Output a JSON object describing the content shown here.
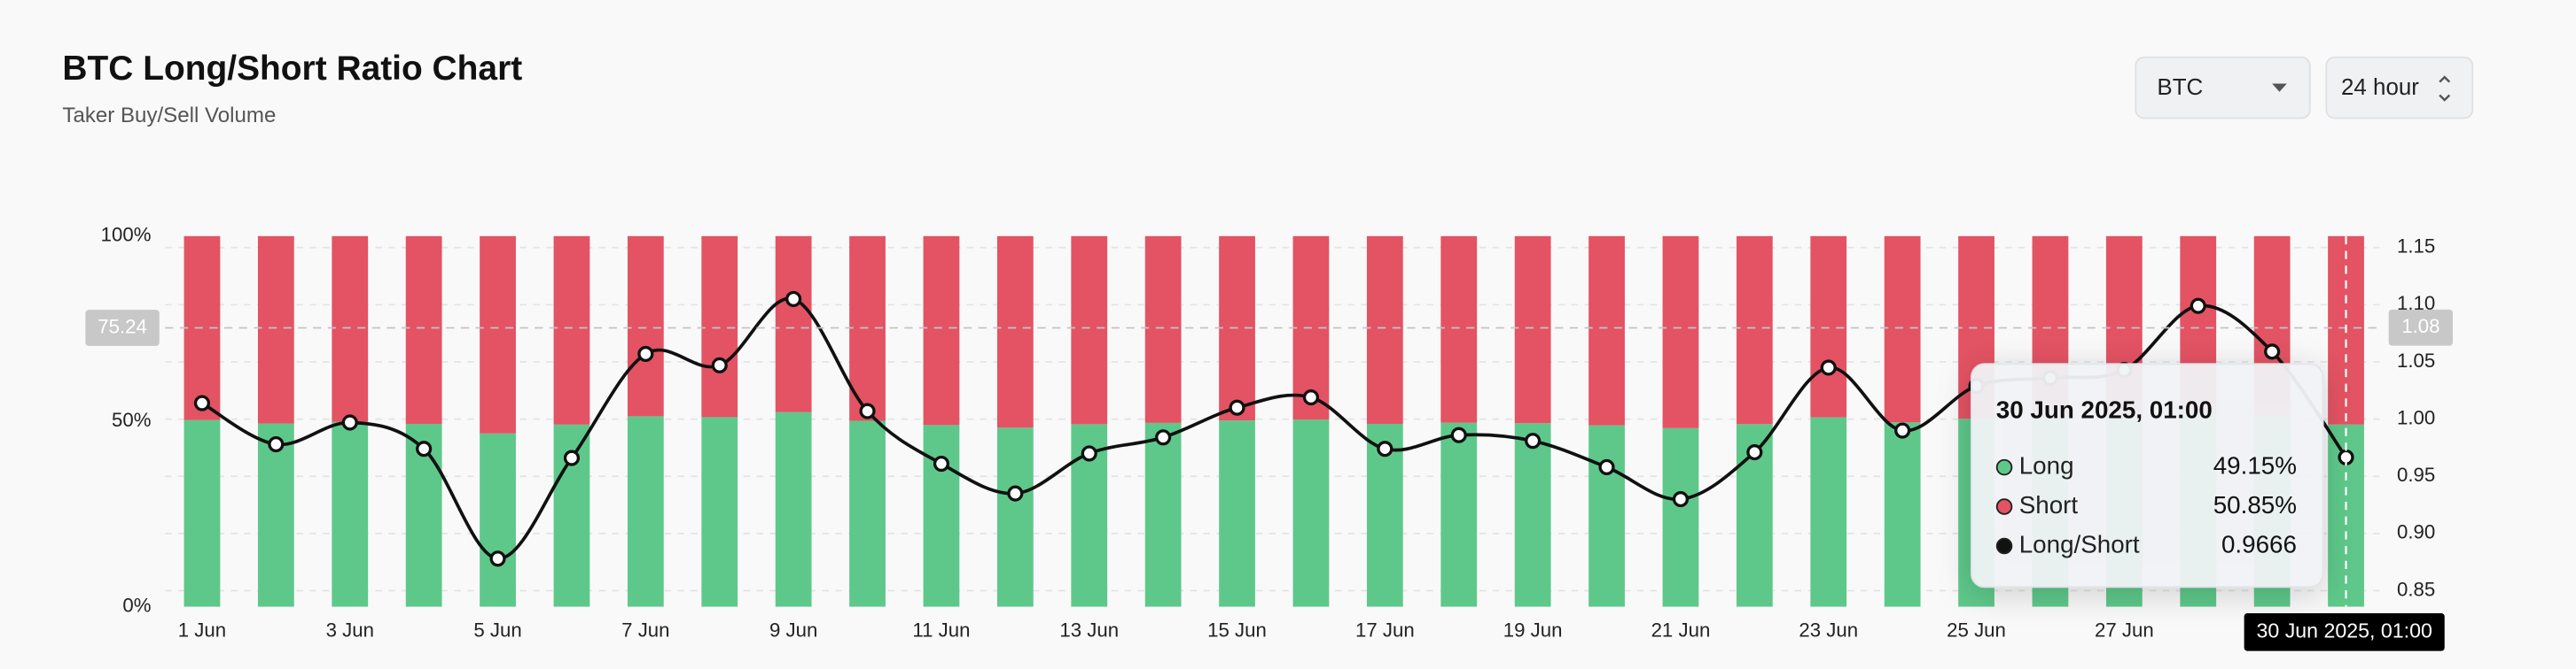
{
  "controls": {
    "symbol": "BTC",
    "interval": "24 hour"
  },
  "chart_data": {
    "type": "bar",
    "title": "BTC Long/Short Ratio Chart",
    "subtitle": "Taker Buy/Sell Volume",
    "categories": [
      "1 Jun",
      null,
      "3 Jun",
      null,
      "5 Jun",
      null,
      "7 Jun",
      null,
      "9 Jun",
      null,
      "11 Jun",
      null,
      "13 Jun",
      null,
      "15 Jun",
      null,
      "17 Jun",
      null,
      "19 Jun",
      null,
      "21 Jun",
      null,
      "23 Jun",
      null,
      "25 Jun",
      null,
      "27 Jun",
      null,
      null,
      null
    ],
    "series": [
      {
        "name": "Long",
        "color": "#5ec88a",
        "values": [
          50.35,
          49.44,
          49.92,
          49.34,
          46.75,
          49.14,
          51.39,
          51.15,
          52.49,
          50.17,
          49.01,
          48.32,
          49.24,
          49.6,
          50.25,
          50.47,
          49.34,
          49.65,
          49.52,
          48.93,
          48.19,
          49.26,
          51.1,
          49.75,
          50.71,
          50.88,
          51.05,
          52.36,
          51.43,
          49.15
        ]
      },
      {
        "name": "Short",
        "color": "#e35363",
        "values": [
          49.65,
          50.56,
          50.08,
          50.66,
          53.25,
          50.86,
          48.61,
          48.85,
          47.51,
          49.83,
          50.99,
          51.68,
          50.76,
          50.4,
          49.75,
          49.53,
          50.66,
          50.35,
          50.48,
          51.07,
          51.81,
          50.74,
          48.9,
          50.25,
          49.29,
          49.12,
          48.95,
          47.64,
          48.57,
          50.85
        ]
      },
      {
        "name": "Long/Short",
        "color": "#111111",
        "axis": "y2",
        "values": [
          1.014,
          0.978,
          0.997,
          0.974,
          0.878,
          0.966,
          1.057,
          1.047,
          1.105,
          1.007,
          0.961,
          0.935,
          0.97,
          0.984,
          1.01,
          1.019,
          0.974,
          0.986,
          0.981,
          0.958,
          0.93,
          0.971,
          1.045,
          0.99,
          1.029,
          1.036,
          1.043,
          1.099,
          1.059,
          0.9666
        ]
      }
    ],
    "ylim": [
      0,
      100
    ],
    "yticks": [
      {
        "value": 0,
        "label": "0%"
      },
      {
        "value": 50,
        "label": "50%"
      },
      {
        "value": 100,
        "label": "100%"
      }
    ],
    "y2lim": [
      0.836,
      1.16
    ],
    "y2ticks": [
      0.85,
      {
        "value": 0.9,
        "label": "0.90"
      },
      0.95,
      {
        "value": 1.0,
        "label": "1.00"
      },
      1.05,
      {
        "value": 1.1,
        "label": "1.10"
      },
      1.15
    ],
    "grid": true,
    "crosshair": {
      "index": 29,
      "y": 75.24,
      "y2": 1.08,
      "x_label": "30 Jun 2025, 01:00"
    },
    "tooltip": {
      "title": "30 Jun 2025, 01:00",
      "value_labels": [
        "49.15%",
        "50.85%",
        "0.9666"
      ]
    }
  }
}
